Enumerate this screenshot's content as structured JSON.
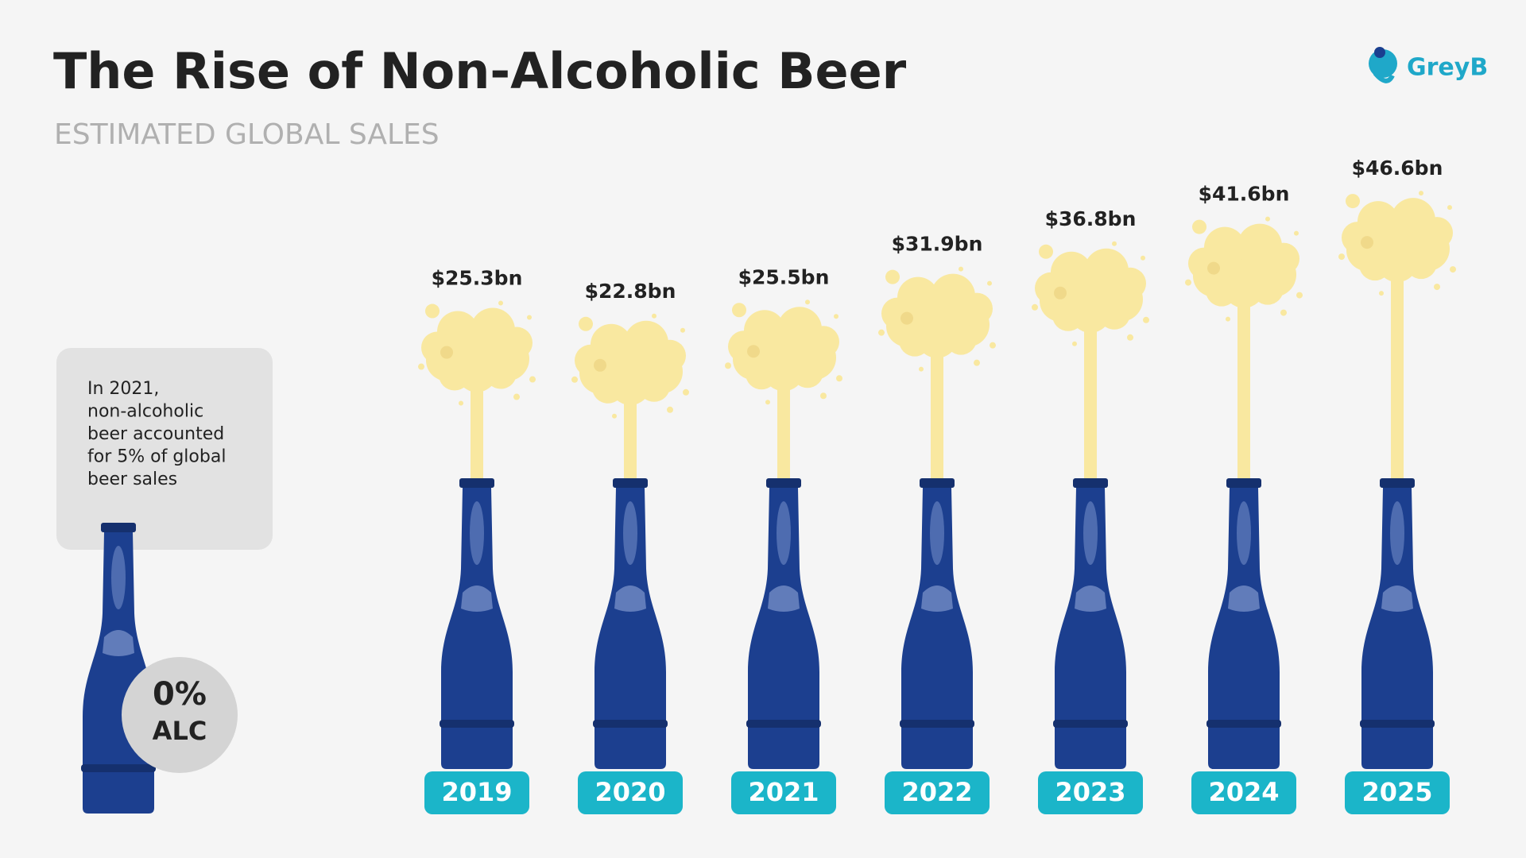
{
  "chart_data": {
    "type": "bar",
    "title": "The Rise of Non-Alcoholic Beer",
    "subtitle": "ESTIMATED GLOBAL SALES",
    "brand": "GreyB",
    "note": [
      "In 2021,",
      "non-alcoholic",
      "beer accounted",
      "for 5% of global",
      "beer sales"
    ],
    "badge": [
      "0%",
      "ALC"
    ],
    "categories": [
      "2019",
      "2020",
      "2021",
      "2022",
      "2023",
      "2024",
      "2025"
    ],
    "values": [
      25.3,
      22.8,
      25.5,
      31.9,
      36.8,
      41.6,
      46.6
    ],
    "value_labels": [
      "$25.3bn",
      "$22.8bn",
      "$25.5bn",
      "$31.9bn",
      "$36.8bn",
      "$41.6bn",
      "$46.6bn"
    ],
    "color": "#f9e8a0"
  }
}
